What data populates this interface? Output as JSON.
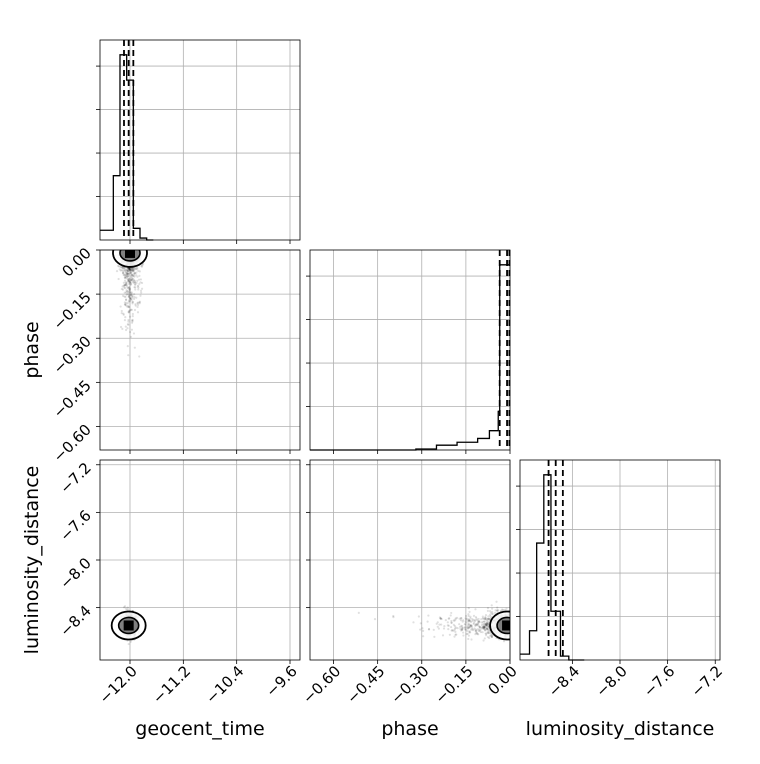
{
  "chart_data": {
    "type": "corner",
    "parameters": [
      "geocent_time",
      "phase",
      "luminosity_distance"
    ],
    "ranges": {
      "geocent_time": [
        -12.45,
        -9.45
      ],
      "phase": [
        -0.68,
        0.0
      ],
      "luminosity_distance": [
        -8.84,
        -7.16
      ]
    },
    "ticks": {
      "geocent_time": [
        -12.0,
        -11.2,
        -10.4,
        -9.6
      ],
      "phase": [
        -0.6,
        -0.45,
        -0.3,
        -0.15,
        0.0
      ],
      "luminosity_distance": [
        -8.4,
        -8.0,
        -7.6,
        -7.2
      ]
    },
    "tick_labels": {
      "geocent_time": [
        "−12.0",
        "−11.2",
        "−10.4",
        "−9.6"
      ],
      "phase": [
        "−0.60",
        "−0.45",
        "−0.30",
        "−0.15",
        "0.00"
      ],
      "luminosity_distance": [
        "−8.4",
        "−8.0",
        "−7.6",
        "−7.2"
      ]
    },
    "grid": true,
    "histograms": {
      "geocent_time": {
        "edges": [
          -12.45,
          -12.35,
          -12.25,
          -12.15,
          -12.05,
          -11.95,
          -11.85,
          -11.75,
          -11.65
        ],
        "counts": [
          0.05,
          0.05,
          0.33,
          0.95,
          0.82,
          0.06,
          0.01,
          0.0
        ],
        "quantiles": [
          -12.09,
          -12.02,
          -11.95
        ]
      },
      "phase": {
        "edges": [
          -0.68,
          -0.32,
          -0.25,
          -0.18,
          -0.11,
          -0.07,
          -0.04,
          -0.035,
          0.0
        ],
        "counts": [
          0.0,
          0.005,
          0.025,
          0.04,
          0.06,
          0.1,
          0.2,
          0.96
        ],
        "quantiles": [
          -0.035,
          -0.01,
          -0.002
        ]
      },
      "luminosity_distance": {
        "edges": [
          -8.84,
          -8.76,
          -8.7,
          -8.64,
          -8.58,
          -8.5,
          -8.43,
          -8.36,
          -8.3
        ],
        "counts": [
          0.03,
          0.15,
          0.6,
          0.95,
          0.25,
          0.02,
          0.0,
          0.0
        ],
        "quantiles": [
          -8.6,
          -8.54,
          -8.48
        ]
      }
    },
    "pairs": [
      {
        "x": "geocent_time",
        "y": "phase",
        "center": [
          -12.0,
          -0.02
        ],
        "spread": [
          0.07,
          0.12
        ],
        "peak": [
          -12.0,
          -0.01
        ]
      },
      {
        "x": "geocent_time",
        "y": "luminosity_distance",
        "center": [
          -12.0,
          -8.54
        ],
        "spread": [
          0.06,
          0.05
        ],
        "peak": [
          -12.02,
          -8.55
        ]
      },
      {
        "x": "phase",
        "y": "luminosity_distance",
        "center": [
          -0.15,
          -8.54
        ],
        "spread": [
          0.12,
          0.05
        ],
        "peak": [
          -0.01,
          -8.55
        ]
      }
    ]
  }
}
